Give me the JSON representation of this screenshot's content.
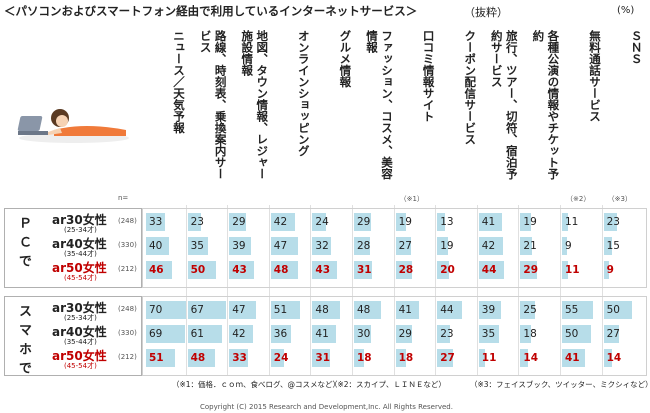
{
  "title": "＜パソコンおよびスマートフォン経由で利用しているインターネットサービス＞",
  "subtitle": "（抜粋）",
  "unit": "(%)",
  "n_label": "n=",
  "columns": [
    {
      "label": "ニュース／天気予報"
    },
    {
      "label": "路線、時刻表、乗換案内サービス"
    },
    {
      "label": "地図、タウン情報、レジャー施設情報"
    },
    {
      "label": "オンラインショッピング"
    },
    {
      "label": "グルメ情報"
    },
    {
      "label": "ファッション、コスメ、美容情報"
    },
    {
      "label": "口コミ情報サイト",
      "note": "（※1）"
    },
    {
      "label": "クーポン配信サービス"
    },
    {
      "label": "旅行、ツアー、切符、宿泊予約サービス"
    },
    {
      "label": "各種公演の情報やチケット予約"
    },
    {
      "label": "無料通話サービス",
      "note": "（※2）"
    },
    {
      "label": "ＳＮＳ",
      "note": "（※3）"
    }
  ],
  "groups": [
    {
      "label": "ＰＣで",
      "rows": [
        {
          "name": "ar30女性",
          "age": "(25-34才)",
          "n": "(248)",
          "color": "#222222",
          "values": [
            33,
            23,
            29,
            42,
            24,
            29,
            19,
            13,
            41,
            19,
            11,
            23
          ]
        },
        {
          "name": "ar40女性",
          "age": "(35-44才)",
          "n": "(330)",
          "color": "#222222",
          "values": [
            40,
            35,
            39,
            47,
            32,
            28,
            27,
            19,
            42,
            21,
            9,
            15
          ]
        },
        {
          "name": "ar50女性",
          "age": "(45-54才)",
          "n": "(212)",
          "color": "#c00000",
          "values": [
            46,
            50,
            43,
            48,
            43,
            31,
            28,
            20,
            44,
            29,
            11,
            9
          ]
        }
      ]
    },
    {
      "label": "スマホで",
      "rows": [
        {
          "name": "ar30女性",
          "age": "(25-34才)",
          "n": "(248)",
          "color": "#222222",
          "values": [
            70,
            67,
            47,
            51,
            48,
            48,
            41,
            44,
            39,
            25,
            55,
            50
          ]
        },
        {
          "name": "ar40女性",
          "age": "(35-44才)",
          "n": "(330)",
          "color": "#222222",
          "values": [
            69,
            61,
            42,
            36,
            41,
            30,
            29,
            23,
            35,
            18,
            50,
            27
          ]
        },
        {
          "name": "ar50女性",
          "age": "(45-54才)",
          "n": "(212)",
          "color": "#c00000",
          "values": [
            51,
            48,
            33,
            24,
            31,
            18,
            18,
            27,
            11,
            14,
            41,
            14
          ]
        }
      ]
    }
  ],
  "footnotes": [
    "（※1：価格．ｃｏｍ、食べログ、@コスメなど）",
    "（※2：スカイプ、ＬＩＮＥなど）",
    "（※3：フェイスブック、ツイッター、ミクシィなど）"
  ],
  "copyright": "Copyright (C) 2015 Research and Development,Inc. All Rights Reserved."
}
